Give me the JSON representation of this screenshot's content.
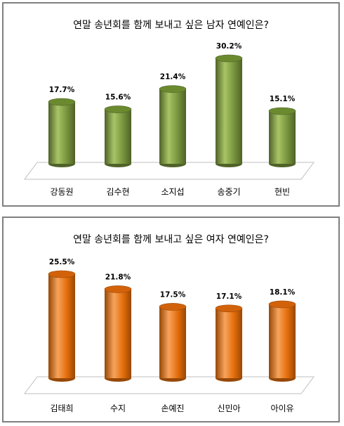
{
  "chart_data": [
    {
      "type": "bar",
      "title": "연말 송년회를 함께 보내고 싶은 남자 연예인은?",
      "categories": [
        "강동원",
        "김수현",
        "소지섭",
        "송중기",
        "현빈"
      ],
      "values": [
        17.7,
        15.6,
        21.4,
        30.2,
        15.1
      ],
      "value_labels": [
        "17.7%",
        "15.6%",
        "21.4%",
        "30.2%",
        "15.1%"
      ],
      "ylim": [
        0,
        30.2
      ],
      "grid": false,
      "legend": "none",
      "colors": {
        "bar_body": "#76933c",
        "bar_light": "#a8c466",
        "bar_dark": "#4f6228",
        "bar_top": "#6b8a2f"
      }
    },
    {
      "type": "bar",
      "title": "연말 송년회를 함께 보내고 싶은 여자 연예인은?",
      "categories": [
        "김태희",
        "수지",
        "손예진",
        "신민아",
        "아이유"
      ],
      "values": [
        25.5,
        21.8,
        17.5,
        17.1,
        18.1
      ],
      "value_labels": [
        "25.5%",
        "21.8%",
        "17.5%",
        "17.1%",
        "18.1%"
      ],
      "ylim": [
        0,
        25.5
      ],
      "grid": false,
      "legend": "none",
      "colors": {
        "bar_body": "#e36c09",
        "bar_light": "#f7a35c",
        "bar_dark": "#974806",
        "bar_top": "#d2620a"
      }
    }
  ]
}
